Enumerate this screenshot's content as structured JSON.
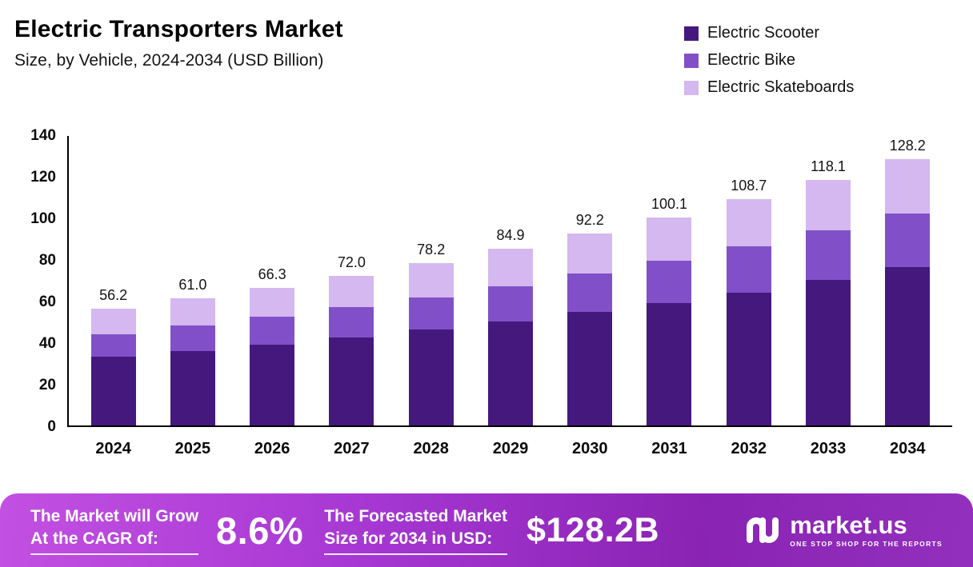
{
  "header": {
    "title": "Electric Transporters Market",
    "subtitle": "Size, by Vehicle, 2024-2034 (USD Billion)"
  },
  "chart_data": {
    "type": "bar",
    "stacked": true,
    "title": "Electric Transporters Market",
    "subtitle": "Size, by Vehicle, 2024-2034 (USD Billion)",
    "unit": "USD Billion",
    "categories": [
      "2024",
      "2025",
      "2026",
      "2027",
      "2028",
      "2029",
      "2030",
      "2031",
      "2032",
      "2033",
      "2034"
    ],
    "series": [
      {
        "name": "Electric Scooter",
        "color": "#45187e",
        "values": [
          33.0,
          35.8,
          39.0,
          42.5,
          46.0,
          50.0,
          54.5,
          59.0,
          64.0,
          70.0,
          76.0
        ]
      },
      {
        "name": "Electric Bike",
        "color": "#8150c8",
        "values": [
          11.0,
          12.2,
          13.3,
          14.3,
          15.5,
          17.0,
          18.5,
          20.3,
          22.0,
          23.7,
          26.0
        ]
      },
      {
        "name": "Electric Skateboards",
        "color": "#d4b8ef",
        "values": [
          12.2,
          13.0,
          14.0,
          15.2,
          16.7,
          17.9,
          19.2,
          20.8,
          22.7,
          24.4,
          26.2
        ]
      }
    ],
    "totals": [
      56.2,
      61.0,
      66.3,
      72.0,
      78.2,
      84.9,
      92.2,
      100.1,
      108.7,
      118.1,
      128.2
    ],
    "total_labels": [
      "56.2",
      "61.0",
      "66.3",
      "72.0",
      "78.2",
      "84.9",
      "92.2",
      "100.1",
      "108.7",
      "118.1",
      "128.2"
    ],
    "ylim": [
      0,
      140
    ],
    "yticks": [
      0,
      20,
      40,
      60,
      80,
      100,
      120,
      140
    ],
    "legend_position": "top-right",
    "grid": false
  },
  "footer": {
    "cagr_label": [
      "The Market will Grow",
      "At the CAGR of:"
    ],
    "cagr_value": "8.6%",
    "forecast_label": [
      "The Forecasted Market",
      "Size for 2034 in USD:"
    ],
    "forecast_value": "$128.2B",
    "brand_name": "market.us",
    "brand_tagline": "ONE STOP SHOP FOR THE REPORTS"
  },
  "colors": {
    "scooter": "#45187e",
    "bike": "#8150c8",
    "skateboards": "#d4b8ef",
    "banner_gradient_start": "#c250e2",
    "banner_gradient_end": "#9230bd"
  }
}
